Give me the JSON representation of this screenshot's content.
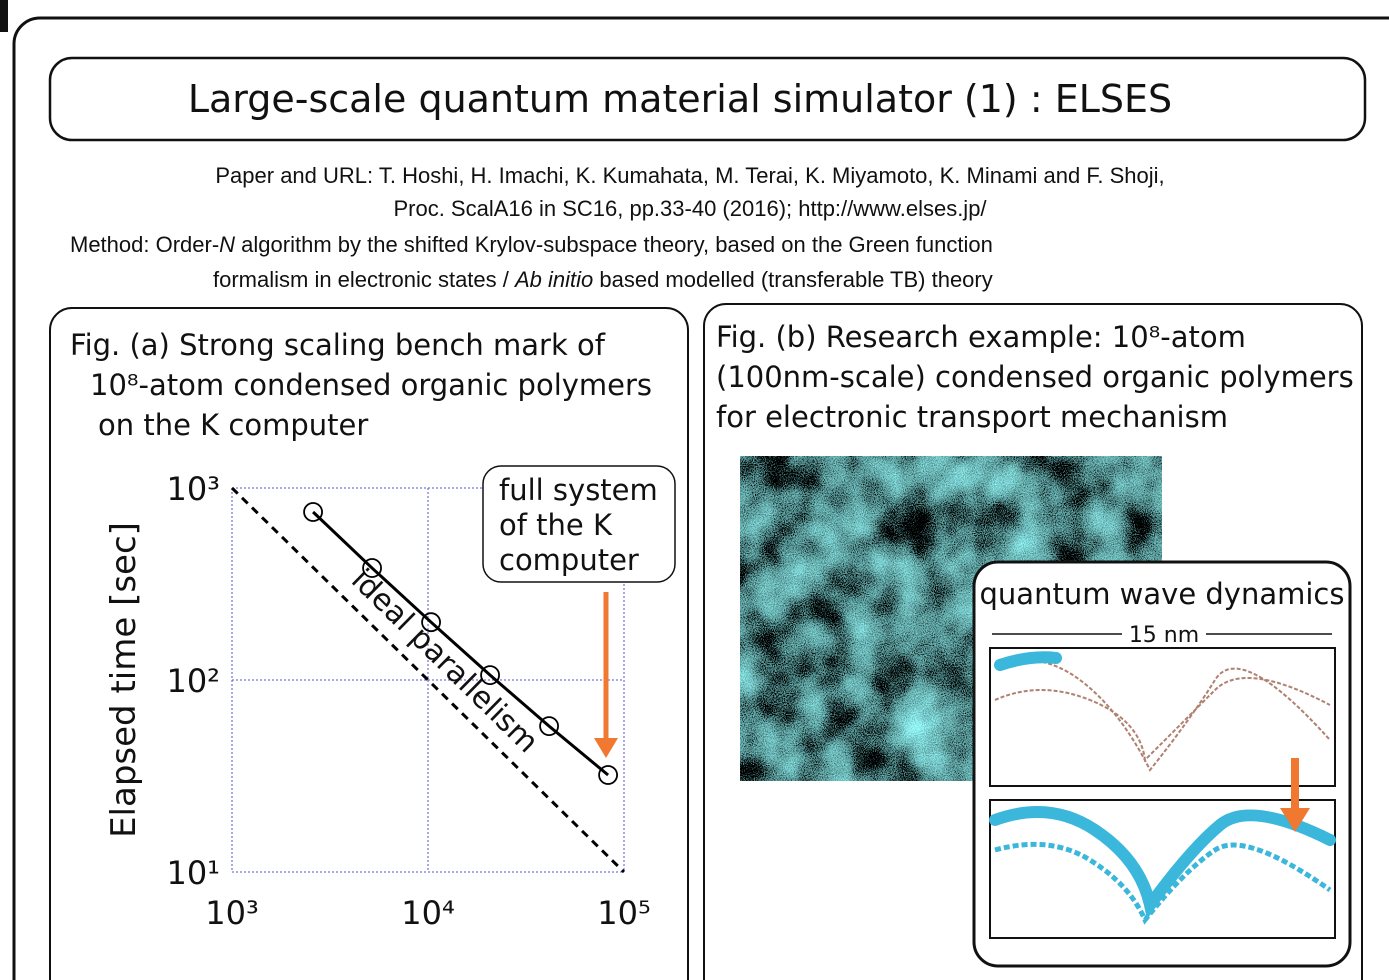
{
  "slide_title": "Large-scale quantum material simulator (1) : ELSES",
  "paper": [
    "Paper and URL: T. Hoshi, H. Imachi, K. Kumahata, M. Terai, K. Miyamoto, K. Minami and F. Shoji,",
    "Proc. ScalA16 in SC16, pp.33-40 (2016); http://www.elses.jp/"
  ],
  "method": [
    [
      "Method: Order-",
      "N",
      " algorithm by the shifted Krylov-subspace theory, based on the Green function"
    ],
    [
      "formalism  in electronic states / ",
      "Ab initio",
      " based modelled (transferable TB) theory"
    ]
  ],
  "panel_a": {
    "caption": [
      "Fig. (a)  Strong scaling bench mark of",
      "10⁸-atom condensed organic polymers",
      "on the K computer"
    ]
  },
  "panel_b": {
    "caption": [
      "Fig. (b)  Research example: 10⁸-atom",
      "(100nm-scale) condensed organic polymers",
      "for electronic transport mechanism"
    ],
    "inset_title": "quantum wave dynamics",
    "scale_label": "15 nm"
  },
  "chart_data": {
    "type": "line",
    "ylabel": "Elapsed time [sec]",
    "xscale": "log",
    "yscale": "log",
    "xlim": [
      1000,
      100000
    ],
    "ylim": [
      10,
      1000
    ],
    "xticks": [
      {
        "value": 1000,
        "label": "10³"
      },
      {
        "value": 10000,
        "label": "10⁴"
      },
      {
        "value": 100000,
        "label": "10⁵"
      }
    ],
    "yticks": [
      {
        "value": 10,
        "label": "10¹"
      },
      {
        "value": 100,
        "label": "10²"
      },
      {
        "value": 1000,
        "label": "10³"
      }
    ],
    "grid": true,
    "grid_color": "#5555cc",
    "series": [
      {
        "name": "ideal parallelism",
        "color": "#000000",
        "dashed": true,
        "x": [
          1000,
          100000
        ],
        "values": [
          1000,
          10
        ]
      },
      {
        "color": "#000000",
        "marker": "circle",
        "x": [
          2592,
          5184,
          10368,
          20736,
          41472,
          82944
        ],
        "values": [
          750,
          383,
          200,
          106,
          57.5,
          32
        ]
      }
    ],
    "annotation": [
      "full system",
      "of the K",
      "computer"
    ],
    "arrow_color": "#f07830"
  }
}
